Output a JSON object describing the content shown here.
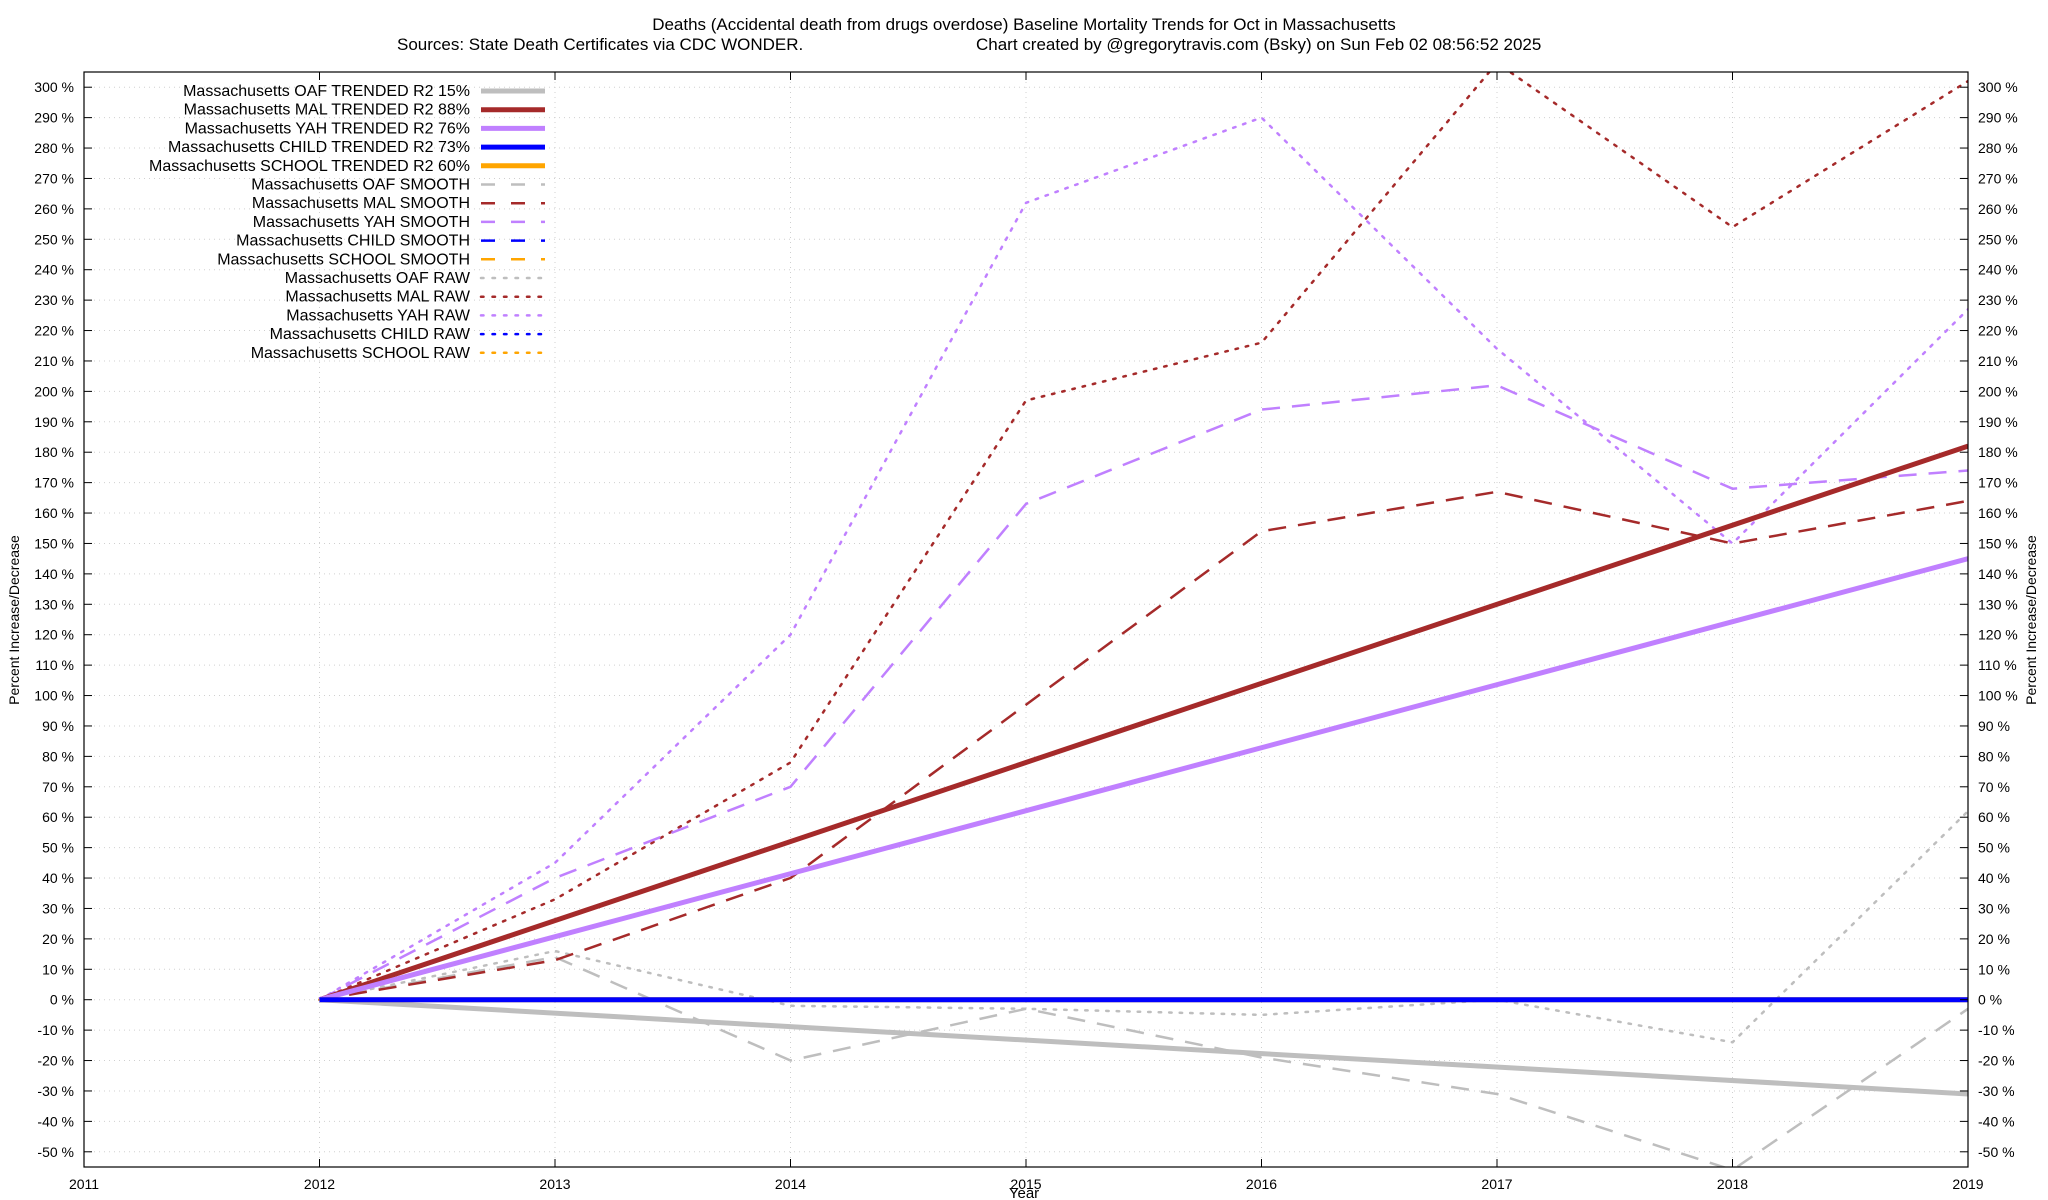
{
  "chart_data": {
    "type": "line",
    "title": "Deaths (Accidental death from drugs overdose)  Baseline Mortality Trends for Oct in Massachusetts",
    "subtitle_left": "Sources: State Death Certificates via CDC WONDER.",
    "subtitle_right": "Chart created by @gregorytravis.com (Bsky) on Sun Feb 02 08:56:52 2025",
    "xlabel": "Year",
    "ylabel_left": "Percent Increase/Decrease",
    "ylabel_right": "Percent Increase/Decrease",
    "xlim": [
      2011,
      2019
    ],
    "ylim": [
      -55,
      305
    ],
    "x_ticks": [
      "2011",
      "2012",
      "2013",
      "2014",
      "2015",
      "2016",
      "2017",
      "2018",
      "2019"
    ],
    "y_ticks_left": [
      "300 %",
      "290 %",
      "280 %",
      "270 %",
      "260 %",
      "250 %",
      "240 %",
      "230 %",
      "220 %",
      "210 %",
      "200 %",
      "190 %",
      "180 %",
      "170 %",
      "160 %",
      "150 %",
      "140 %",
      "130 %",
      "120 %",
      "110 %",
      "100 %",
      "90 %",
      "80 %",
      "70 %",
      "60 %",
      "50 %",
      "40 %",
      "30 %",
      "20 %",
      "10 %",
      "0 %",
      "-10 %",
      "-20 %",
      "-30 %",
      "-40 %",
      "-50 %"
    ],
    "y_ticks_right": [
      "300 %",
      "290 %",
      "280 %",
      "270 %",
      "260 %",
      "250 %",
      "240 %",
      "230 %",
      "220 %",
      "210 %",
      "200 %",
      "190 %",
      "180 %",
      "170 %",
      "160 %",
      "150 %",
      "140 %",
      "130 %",
      "120 %",
      "110 %",
      "100 %",
      "90 %",
      "80 %",
      "70 %",
      "60 %",
      "50 %",
      "40 %",
      "30 %",
      "20 %",
      "10 %",
      "0 %",
      "-10 %",
      "-20 %",
      "-30 %",
      "-40 %",
      "-50 %"
    ],
    "grid": true,
    "legend_placement": "top-left",
    "series": [
      {
        "name": "Massachusetts OAF TRENDED R2  15%",
        "style": "solid",
        "color": "#bebebe",
        "x": [
          2012,
          2019
        ],
        "y": [
          0,
          -31
        ]
      },
      {
        "name": "Massachusetts MAL TRENDED R2  88%",
        "style": "solid",
        "color": "#a52a2a",
        "x": [
          2012,
          2019
        ],
        "y": [
          0,
          182
        ]
      },
      {
        "name": "Massachusetts YAH TRENDED R2  76%",
        "style": "solid",
        "color": "#c080ff",
        "x": [
          2012,
          2019
        ],
        "y": [
          0,
          145
        ]
      },
      {
        "name": "Massachusetts CHILD TRENDED R2  73%",
        "style": "solid",
        "color": "#0000ff",
        "x": [
          2012,
          2019
        ],
        "y": [
          0,
          0
        ]
      },
      {
        "name": "Massachusetts SCHOOL TRENDED R2  60%",
        "style": "solid",
        "color": "#ffa500",
        "x": [
          2012,
          2019
        ],
        "y": [
          0,
          0
        ]
      },
      {
        "name": "Massachusetts OAF SMOOTH",
        "style": "dashed",
        "color": "#bebebe",
        "x": [
          2012,
          2013,
          2014,
          2015,
          2016,
          2017,
          2018,
          2019
        ],
        "y": [
          0,
          14,
          -20,
          -3,
          -19,
          -31,
          -56,
          -3
        ]
      },
      {
        "name": "Massachusetts MAL SMOOTH",
        "style": "dashed",
        "color": "#a52a2a",
        "x": [
          2012,
          2013,
          2014,
          2015,
          2016,
          2017,
          2018,
          2019
        ],
        "y": [
          0,
          13,
          40,
          97,
          154,
          167,
          150,
          164
        ]
      },
      {
        "name": "Massachusetts YAH SMOOTH",
        "style": "dashed",
        "color": "#c080ff",
        "x": [
          2012,
          2013,
          2014,
          2015,
          2016,
          2017,
          2018,
          2019
        ],
        "y": [
          0,
          40,
          70,
          163,
          194,
          202,
          168,
          174
        ]
      },
      {
        "name": "Massachusetts CHILD SMOOTH",
        "style": "dashed",
        "color": "#0000ff",
        "x": [
          2012,
          2019
        ],
        "y": [
          0,
          0
        ]
      },
      {
        "name": "Massachusetts SCHOOL SMOOTH",
        "style": "dashed",
        "color": "#ffa500",
        "x": [
          2012,
          2019
        ],
        "y": [
          0,
          0
        ]
      },
      {
        "name": "Massachusetts OAF RAW",
        "style": "dotted",
        "color": "#bebebe",
        "x": [
          2012,
          2013,
          2014,
          2015,
          2016,
          2017,
          2018,
          2019
        ],
        "y": [
          0,
          16,
          -2,
          -3,
          -5,
          0,
          -14,
          62
        ]
      },
      {
        "name": "Massachusetts MAL RAW",
        "style": "dotted",
        "color": "#a52a2a",
        "x": [
          2012,
          2013,
          2014,
          2015,
          2016,
          2017,
          2018,
          2019
        ],
        "y": [
          0,
          33,
          78,
          197,
          216,
          308,
          254,
          302
        ]
      },
      {
        "name": "Massachusetts YAH RAW",
        "style": "dotted",
        "color": "#c080ff",
        "x": [
          2012,
          2013,
          2014,
          2015,
          2016,
          2017,
          2018,
          2019
        ],
        "y": [
          0,
          45,
          120,
          262,
          290,
          214,
          150,
          227
        ]
      },
      {
        "name": "Massachusetts CHILD RAW",
        "style": "dotted",
        "color": "#0000ff",
        "x": [
          2012,
          2019
        ],
        "y": [
          0,
          0
        ]
      },
      {
        "name": "Massachusetts SCHOOL RAW",
        "style": "dotted",
        "color": "#ffa500",
        "x": [
          2012,
          2019
        ],
        "y": [
          0,
          0
        ]
      }
    ]
  }
}
